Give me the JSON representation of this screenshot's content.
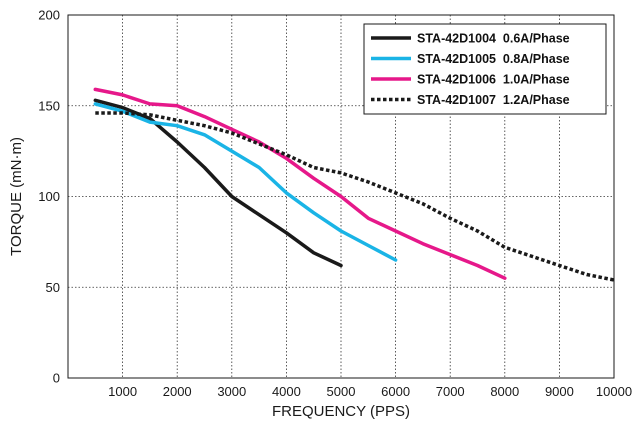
{
  "chart_data": {
    "type": "line",
    "xlabel": "FREQUENCY (PPS)",
    "ylabel": "TORQUE (mN·m)",
    "xlim": [
      0,
      10000
    ],
    "ylim": [
      0,
      200
    ],
    "x_ticks": [
      1000,
      2000,
      3000,
      4000,
      5000,
      6000,
      7000,
      8000,
      9000,
      10000
    ],
    "y_ticks": [
      0,
      50,
      100,
      150,
      200
    ],
    "grid": "dotted",
    "legend_position": "top-right",
    "series": [
      {
        "name": "STA-42D1004  0.6A/Phase",
        "color": "#1a1a1a",
        "style": "solid",
        "points": [
          [
            500,
            153
          ],
          [
            1000,
            149
          ],
          [
            1500,
            143
          ],
          [
            2000,
            130
          ],
          [
            2500,
            116
          ],
          [
            3000,
            100
          ],
          [
            3500,
            90
          ],
          [
            4000,
            80
          ],
          [
            4500,
            69
          ],
          [
            5000,
            62
          ]
        ]
      },
      {
        "name": "STA-42D1005  0.8A/Phase",
        "color": "#1ab4e6",
        "style": "solid",
        "points": [
          [
            500,
            151
          ],
          [
            1000,
            147
          ],
          [
            1500,
            141
          ],
          [
            2000,
            139
          ],
          [
            2500,
            134
          ],
          [
            3000,
            125
          ],
          [
            3500,
            116
          ],
          [
            4000,
            102
          ],
          [
            4500,
            91
          ],
          [
            5000,
            81
          ],
          [
            5500,
            73
          ],
          [
            6000,
            65
          ]
        ]
      },
      {
        "name": "STA-42D1006  1.0A/Phase",
        "color": "#e6188a",
        "style": "solid",
        "points": [
          [
            500,
            159
          ],
          [
            1000,
            156
          ],
          [
            1500,
            151
          ],
          [
            2000,
            150
          ],
          [
            2500,
            144
          ],
          [
            3000,
            137
          ],
          [
            3500,
            130
          ],
          [
            4000,
            121
          ],
          [
            4500,
            110
          ],
          [
            5000,
            100
          ],
          [
            5500,
            88
          ],
          [
            6000,
            81
          ],
          [
            6500,
            74
          ],
          [
            7000,
            68
          ],
          [
            7500,
            62
          ],
          [
            8000,
            55
          ]
        ]
      },
      {
        "name": "STA-42D1007  1.2A/Phase",
        "color": "#1a1a1a",
        "style": "dotted",
        "points": [
          [
            500,
            146
          ],
          [
            1000,
            146
          ],
          [
            1500,
            145
          ],
          [
            2000,
            142
          ],
          [
            2500,
            139
          ],
          [
            3000,
            135
          ],
          [
            3500,
            129
          ],
          [
            4000,
            123
          ],
          [
            4500,
            116
          ],
          [
            5000,
            113
          ],
          [
            5500,
            108
          ],
          [
            6000,
            102
          ],
          [
            6500,
            96
          ],
          [
            7000,
            88
          ],
          [
            7500,
            81
          ],
          [
            8000,
            72
          ],
          [
            8500,
            67
          ],
          [
            9000,
            62
          ],
          [
            9500,
            57
          ],
          [
            10000,
            54
          ]
        ]
      }
    ]
  }
}
